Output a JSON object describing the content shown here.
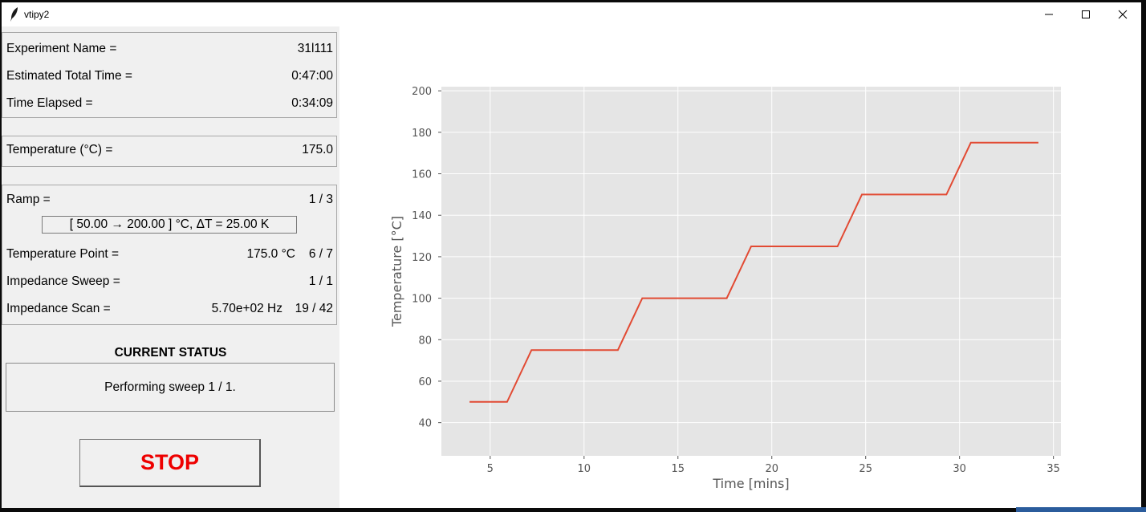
{
  "window": {
    "title": "vtipy2"
  },
  "experiment": {
    "name_label": "Experiment Name =",
    "name_value": "31l111",
    "total_label": "Estimated Total Time =",
    "total_value": "0:47:00",
    "elapsed_label": "Time Elapsed =",
    "elapsed_value": "0:34:09"
  },
  "temperature": {
    "label": "Temperature (°C) =",
    "value": "175.0"
  },
  "ramp": {
    "label": "Ramp =",
    "value": "1 / 3",
    "range": "[ 50.00 → 200.00 ] °C, ΔT = 25.00 K",
    "point_label": "Temperature Point =",
    "point_temp": "175.0 °C",
    "point_count": "6 / 7",
    "sweep_label": "Impedance Sweep =",
    "sweep_value": "1 / 1",
    "scan_label": "Impedance Scan =",
    "scan_freq": "5.70e+02 Hz",
    "scan_count": "19 / 42"
  },
  "status": {
    "title": "CURRENT STATUS",
    "message": "Performing sweep 1 / 1."
  },
  "stop_button": {
    "label": "STOP",
    "color": "#ee0000"
  },
  "chart_data": {
    "type": "line",
    "xlabel": "Time [mins]",
    "ylabel": "Temperature [°C]",
    "xlim": [
      2.4,
      35.4
    ],
    "ylim": [
      24,
      202
    ],
    "xticks": [
      5,
      10,
      15,
      20,
      25,
      30,
      35
    ],
    "yticks": [
      40,
      60,
      80,
      100,
      120,
      140,
      160,
      180,
      200
    ],
    "grid": true,
    "background": "#e5e5e5",
    "line_color": "#e24a33",
    "series": [
      {
        "x": [
          3.9,
          5.9,
          7.2,
          11.8,
          13.1,
          17.6,
          18.9,
          23.5,
          24.8,
          29.3,
          30.6,
          34.2
        ],
        "y": [
          50,
          50,
          75,
          75,
          100,
          100,
          125,
          125,
          150,
          150,
          175,
          175
        ]
      }
    ]
  }
}
